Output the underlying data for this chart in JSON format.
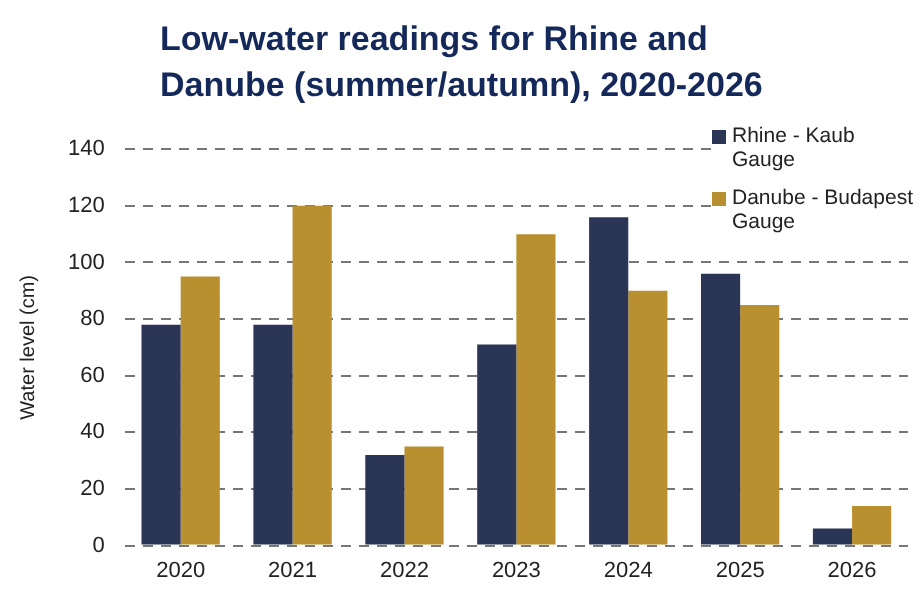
{
  "chart_data": {
    "type": "bar",
    "title": "Low-water readings for Rhine and Danube (summer/autumn), 2020-2026",
    "ylabel": "Water level (cm)",
    "categories": [
      "2020",
      "2021",
      "2022",
      "2023",
      "2024",
      "2025",
      "2026"
    ],
    "series": [
      {
        "name": "Rhine - Kaub Gauge",
        "color": "#2b3556",
        "values": [
          78,
          78,
          32,
          71,
          116,
          96,
          6
        ]
      },
      {
        "name": "Danube - Budapest Gauge",
        "color": "#b8902f",
        "values": [
          95,
          120,
          35,
          110,
          90,
          85,
          14
        ]
      }
    ],
    "ylim": [
      0,
      140
    ],
    "yticks": [
      0,
      20,
      40,
      60,
      80,
      100,
      120,
      140
    ],
    "grid": "y",
    "legend": "top right"
  }
}
